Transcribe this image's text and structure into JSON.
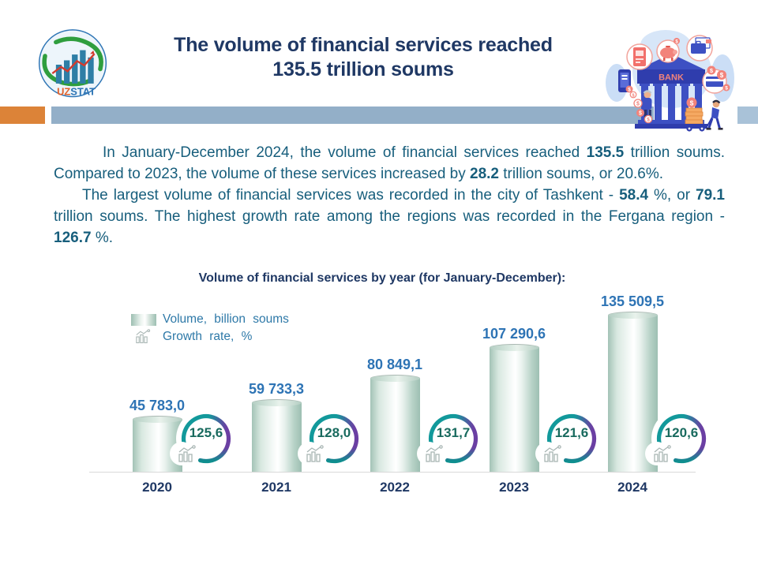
{
  "header": {
    "title_line1": "The volume of financial services reached",
    "title_line2": "135.5 trillion soums",
    "logo": {
      "uz": "UZ",
      "stat": "STAT"
    }
  },
  "illustration": {
    "bank_sign": "BANK",
    "coin_symbol": "$"
  },
  "article": {
    "paragraphs": [
      {
        "segments": [
          {
            "t": "In January-December 2024, the volume of financial services reached "
          },
          {
            "t": "135.5",
            "b": true
          },
          {
            "t": " trillion soums. Compared to 2023, the volume of these services increased by "
          },
          {
            "t": "28.2",
            "b": true
          },
          {
            "t": " trillion soums, or 20.6%."
          }
        ]
      },
      {
        "segments": [
          {
            "t": "The largest volume of financial services was recorded in the city of Tashkent - "
          },
          {
            "t": "58.4",
            "b": true
          },
          {
            "t": " %, or "
          },
          {
            "t": "79.1",
            "b": true
          },
          {
            "t": " trillion soums. The highest growth rate among the regions was recorded in the Fergana region - "
          },
          {
            "t": "126.7",
            "b": true
          },
          {
            "t": " %."
          }
        ]
      }
    ]
  },
  "chart_data": {
    "type": "bar",
    "title": "Volume of financial services by year (for January-December):",
    "categories": [
      "2020",
      "2021",
      "2022",
      "2023",
      "2024"
    ],
    "series": [
      {
        "name": "Volume, billion soums",
        "values": [
          45783.0,
          59733.3,
          80849.1,
          107290.6,
          135509.5
        ],
        "labels": [
          "45 783,0",
          "59 733,3",
          "80 849,1",
          "107 290,6",
          "135 509,5"
        ]
      },
      {
        "name": "Growth rate, %",
        "values": [
          125.6,
          128.0,
          131.7,
          121.6,
          120.6
        ],
        "labels": [
          "125,6",
          "128,0",
          "131,7",
          "121,6",
          "120,6"
        ]
      }
    ],
    "legend": [
      {
        "label": "Volume, billion soums"
      },
      {
        "label": "Growth rate, %"
      }
    ],
    "ylim": [
      0,
      140000
    ],
    "grid": false,
    "legend_position": "top-left",
    "axis_style": "baseline-only"
  },
  "colors": {
    "title_navy": "#1F3864",
    "body_teal_blue": "#175E7C",
    "value_blue": "#2E74B5",
    "ring_teal": "#12999B",
    "ring_purple": "#6B3FA3",
    "growth_value_green": "#186A5E",
    "band_orange": "#DC8338",
    "band_blue": "#93AFC8",
    "bar_edge_green": "#9DBFB2"
  }
}
